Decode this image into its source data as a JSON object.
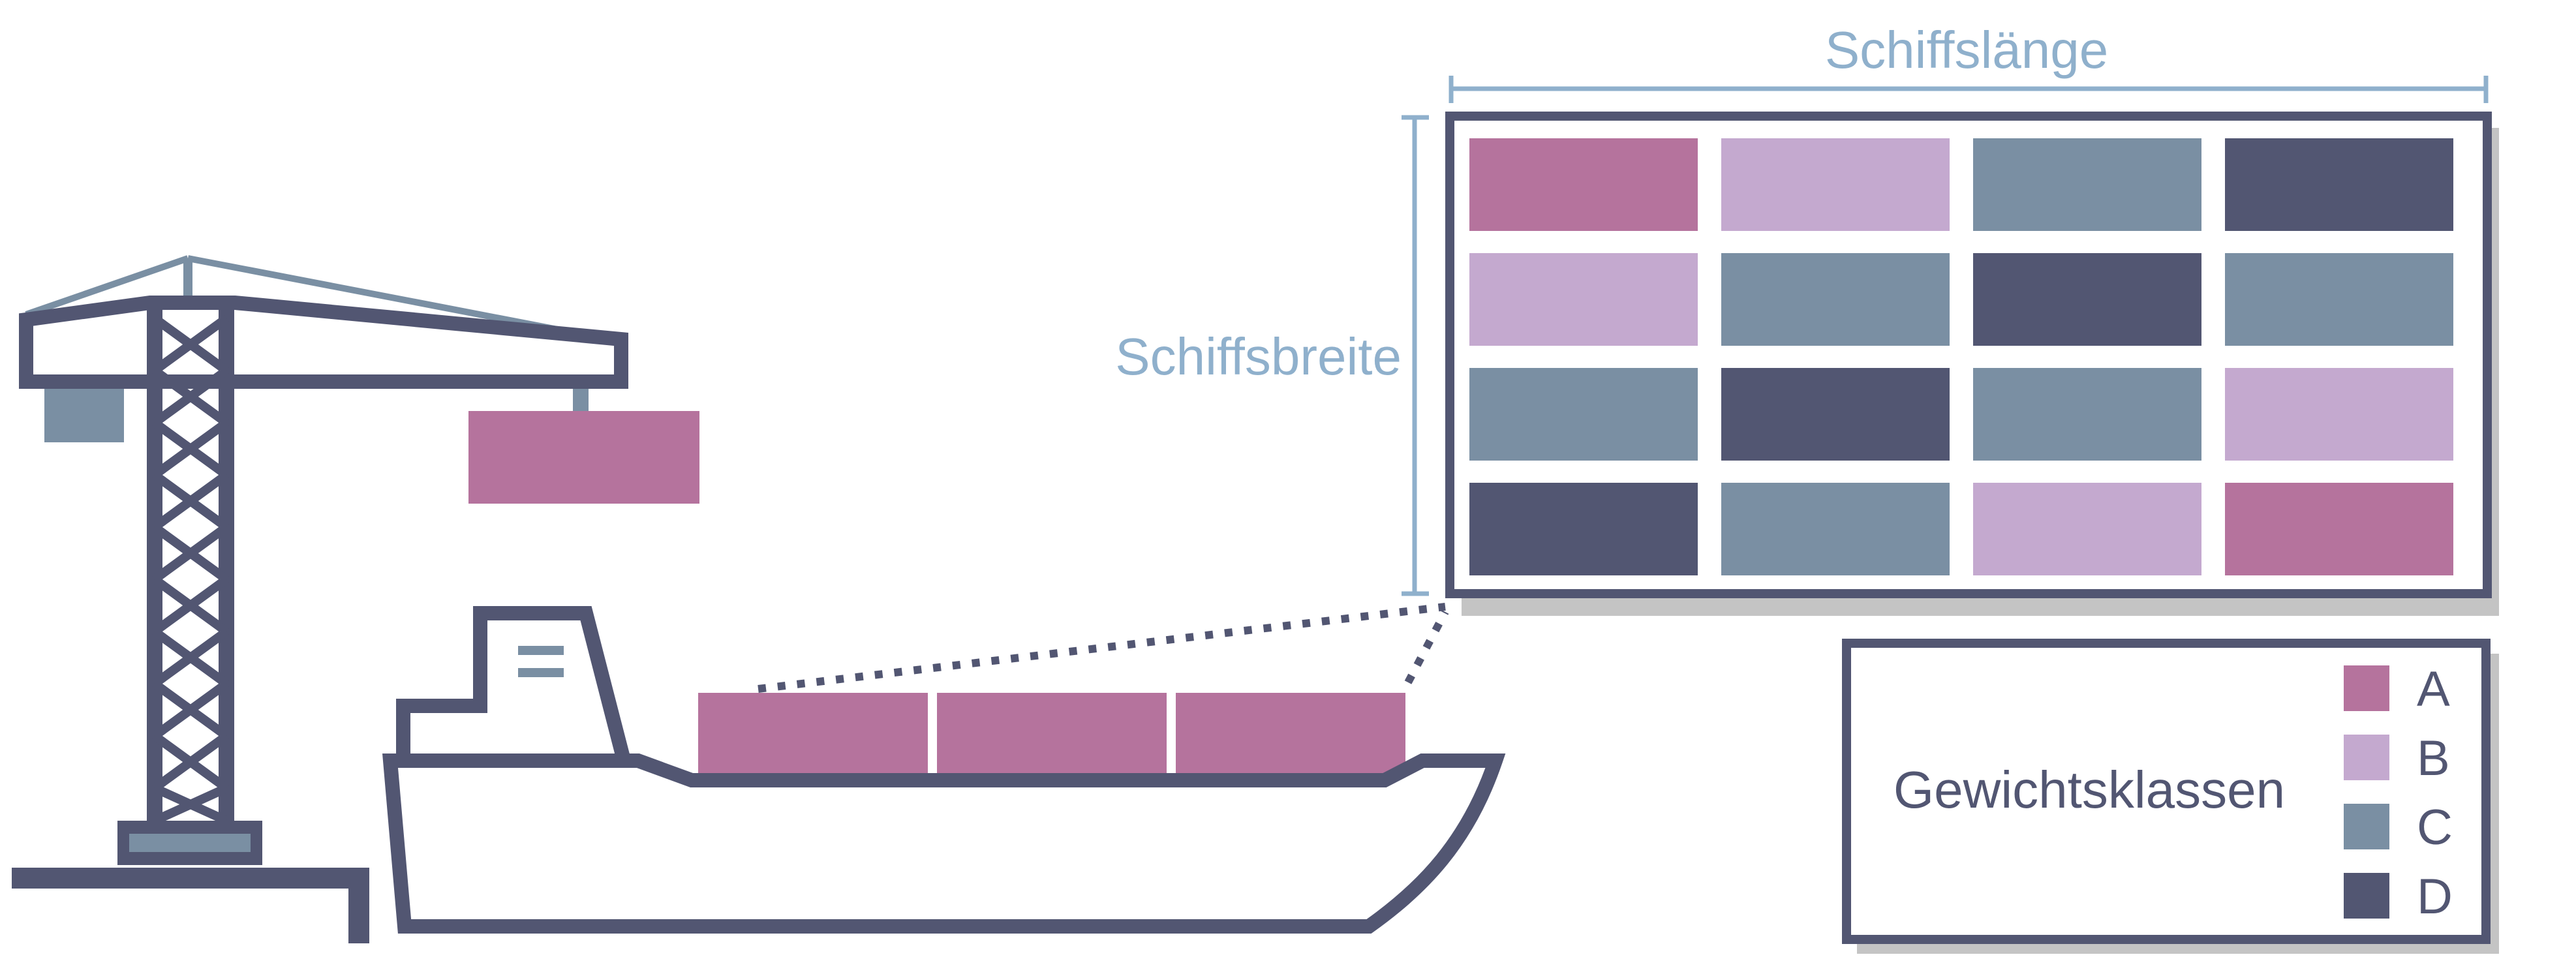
{
  "labels": {
    "ship_length": "Schiffslänge",
    "ship_width": "Schiffsbreite"
  },
  "legend": {
    "title": "Gewichtsklassen",
    "items": [
      {
        "key": "A",
        "label": "A",
        "color": "#b5739d"
      },
      {
        "key": "B",
        "label": "B",
        "color": "#c4a9cf"
      },
      {
        "key": "C",
        "label": "C",
        "color": "#7a8fa3"
      },
      {
        "key": "D",
        "label": "D",
        "color": "#525672"
      }
    ]
  },
  "stowage_grid": [
    [
      "A",
      "B",
      "C",
      "D"
    ],
    [
      "B",
      "C",
      "D",
      "C"
    ],
    [
      "C",
      "D",
      "C",
      "B"
    ],
    [
      "D",
      "C",
      "B",
      "A"
    ]
  ],
  "deck_containers": [
    "A",
    "A",
    "A"
  ],
  "crane_container": "A",
  "colors": {
    "outline": "#525672",
    "dimension": "#8fb0cc",
    "shadow": "#c4c4c4",
    "crane_accent": "#7a8fa3"
  }
}
